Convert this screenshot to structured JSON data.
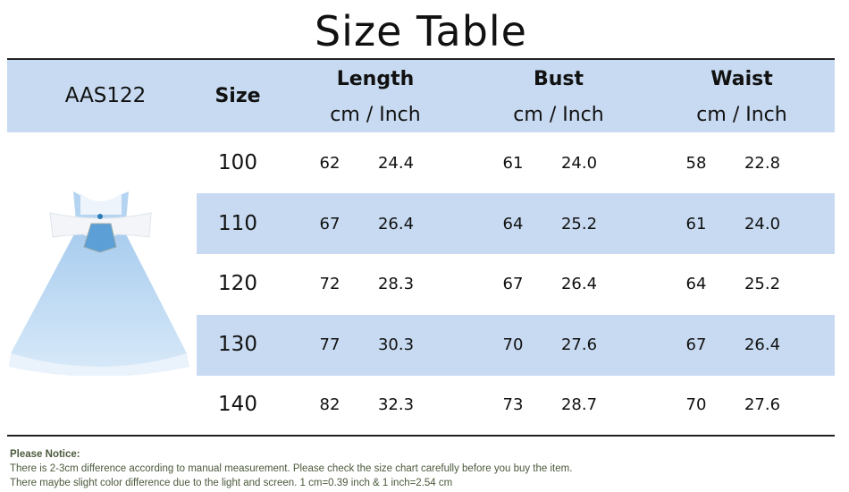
{
  "title": "Size Table",
  "header": {
    "model": "AAS122",
    "size": "Size",
    "columns": [
      {
        "name": "Length",
        "unit": "cm / Inch"
      },
      {
        "name": "Bust",
        "unit": "cm / Inch"
      },
      {
        "name": "Waist",
        "unit": "cm / Inch"
      }
    ]
  },
  "rows": [
    {
      "size": "100",
      "length_cm": "62",
      "length_in": "24.4",
      "bust_cm": "61",
      "bust_in": "24.0",
      "waist_cm": "58",
      "waist_in": "22.8"
    },
    {
      "size": "110",
      "length_cm": "67",
      "length_in": "26.4",
      "bust_cm": "64",
      "bust_in": "25.2",
      "waist_cm": "61",
      "waist_in": "24.0"
    },
    {
      "size": "120",
      "length_cm": "72",
      "length_in": "28.3",
      "bust_cm": "67",
      "bust_in": "26.4",
      "waist_cm": "64",
      "waist_in": "25.2"
    },
    {
      "size": "130",
      "length_cm": "77",
      "length_in": "30.3",
      "bust_cm": "70",
      "bust_in": "27.6",
      "waist_cm": "67",
      "waist_in": "26.4"
    },
    {
      "size": "140",
      "length_cm": "82",
      "length_in": "32.3",
      "bust_cm": "73",
      "bust_in": "28.7",
      "waist_cm": "70",
      "waist_in": "27.6"
    }
  ],
  "notice": {
    "heading": "Please Notice:",
    "lines": [
      "There is 2-3cm difference according to manual measurement. Please check the size chart carefully before you buy the item.",
      "There maybe slight color difference due to the light and screen. 1 cm=0.39 inch & 1 inch=2.54 cm"
    ]
  },
  "colors": {
    "band": "#c7daf1",
    "notice_text": "#4b5a3c"
  }
}
